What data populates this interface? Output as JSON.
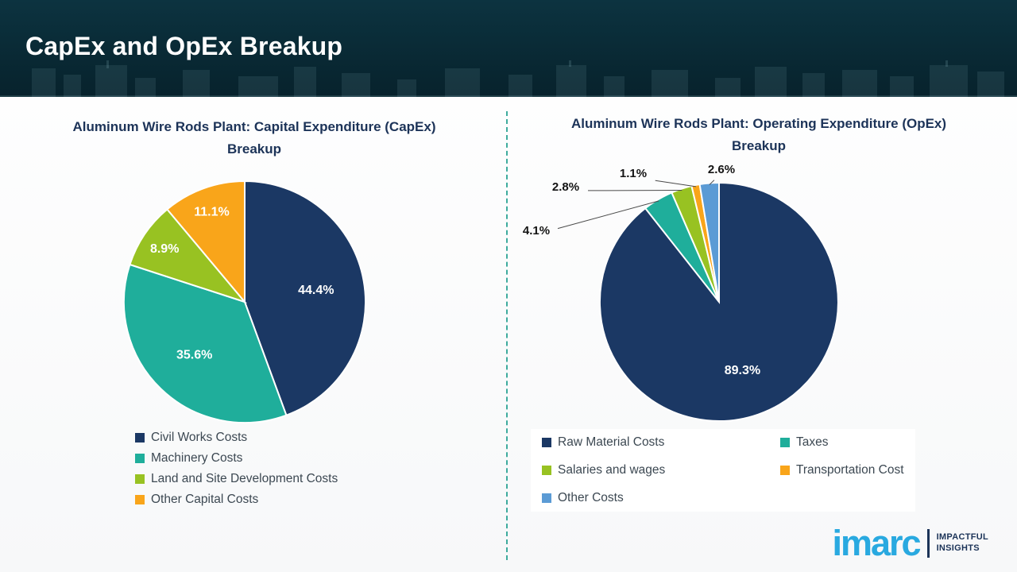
{
  "slide": {
    "title": "CapEx and OpEx Breakup"
  },
  "chart_data": [
    {
      "type": "pie",
      "title": "Aluminum Wire Rods Plant: Capital Expenditure (CapEx) Breakup",
      "legend_position": "bottom",
      "legend_columns": 1,
      "slices": [
        {
          "label": "Civil Works Costs",
          "value": 44.4,
          "pct_label": "44.4%",
          "color": "#1b3864",
          "label_pos": "inside"
        },
        {
          "label": "Machinery Costs",
          "value": 35.6,
          "pct_label": "35.6%",
          "color": "#1fae9b",
          "label_pos": "inside"
        },
        {
          "label": "Land and Site Development Costs",
          "value": 8.9,
          "pct_label": "8.9%",
          "color": "#98c222",
          "label_pos": "inside"
        },
        {
          "label": "Other Capital Costs",
          "value": 11.1,
          "pct_label": "11.1%",
          "color": "#f9a51a",
          "label_pos": "inside"
        }
      ]
    },
    {
      "type": "pie",
      "title": "Aluminum Wire Rods Plant: Operating Expenditure (OpEx) Breakup",
      "legend_position": "bottom",
      "legend_columns": 2,
      "slices": [
        {
          "label": "Raw Material Costs",
          "value": 89.3,
          "pct_label": "89.3%",
          "color": "#1b3864",
          "label_pos": "inside"
        },
        {
          "label": "Taxes",
          "value": 4.1,
          "pct_label": "4.1%",
          "color": "#1fae9b",
          "label_pos": "callout",
          "callout_at": [
            35,
            95
          ]
        },
        {
          "label": "Salaries and wages",
          "value": 2.8,
          "pct_label": "2.8%",
          "color": "#98c222",
          "label_pos": "callout",
          "callout_at": [
            72,
            40
          ]
        },
        {
          "label": "Transportation Cost",
          "value": 1.1,
          "pct_label": "1.1%",
          "color": "#f9a51a",
          "label_pos": "callout",
          "callout_at": [
            157,
            23
          ]
        },
        {
          "label": "Other Costs",
          "value": 2.6,
          "pct_label": "2.6%",
          "color": "#5b9bd5",
          "label_pos": "callout",
          "callout_at": [
            268,
            18
          ]
        }
      ]
    }
  ],
  "logo": {
    "brand": "imarc",
    "tagline_line1": "IMPACTFUL",
    "tagline_line2": "INSIGHTS"
  }
}
